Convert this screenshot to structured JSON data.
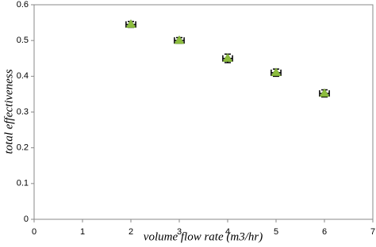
{
  "chart_data": {
    "type": "scatter",
    "x_label": "volume flow rate (m3/hr)",
    "y_label": "total effectiveness",
    "x": [
      2,
      3,
      4,
      5,
      6
    ],
    "values": [
      0.545,
      0.5,
      0.45,
      0.41,
      0.352
    ],
    "x_err": [
      0.1,
      0.1,
      0.1,
      0.1,
      0.1
    ],
    "y_err": [
      0.008,
      0.008,
      0.012,
      0.01,
      0.01
    ],
    "color": "#8dbd3e",
    "xlim": [
      0,
      7
    ],
    "xticks": [
      0,
      1,
      2,
      3,
      4,
      5,
      6,
      7
    ],
    "ylim": [
      0,
      0.6
    ],
    "yticks": [
      0,
      0.1,
      0.2,
      0.3,
      0.4,
      0.5,
      0.6
    ],
    "grid": false
  }
}
